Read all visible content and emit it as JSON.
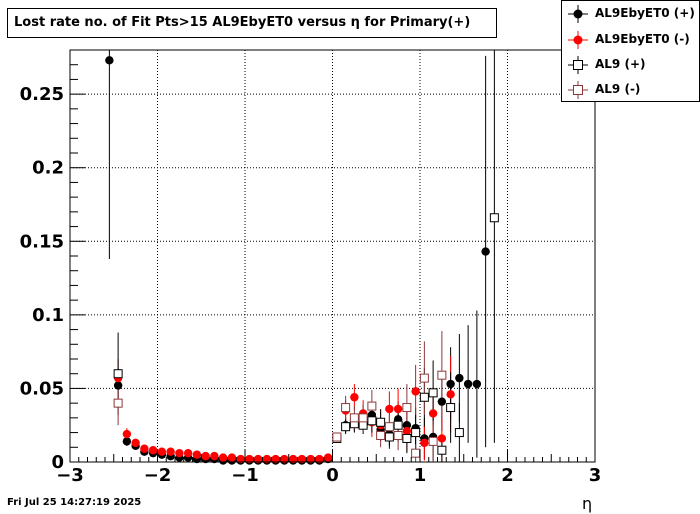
{
  "timestamp": "Fri Jul 25 14:27:19 2025",
  "chart_data": {
    "type": "scatter",
    "title": "Lost rate no. of Fit Pts>15 AL9EbyET0 versus η for Primary(+)",
    "xlabel": "η",
    "ylabel": "",
    "xlim": [
      -3,
      3
    ],
    "ylim": [
      0,
      0.28
    ],
    "x_ticks": [
      -3,
      -2,
      -1,
      0,
      1,
      2,
      3
    ],
    "x_tick_labels": [
      "−3",
      "−2",
      "−1",
      "0",
      "1",
      "2",
      "3"
    ],
    "y_ticks": [
      0,
      0.05,
      0.1,
      0.15,
      0.2,
      0.25
    ],
    "y_tick_labels": [
      "0",
      "0.05",
      "0.1",
      "0.15",
      "0.2",
      "0.25"
    ],
    "grid": true,
    "legend_position": "top-right",
    "series": [
      {
        "name": "AL9EbyET0 (+)",
        "color": "#000000",
        "marker": "filled-circle",
        "points": [
          [
            -2.55,
            0.273,
            0.135
          ],
          [
            -2.45,
            0.052,
            0.012
          ],
          [
            -2.35,
            0.014,
            0.003
          ],
          [
            -2.25,
            0.011,
            0.002
          ],
          [
            -2.15,
            0.007,
            0.001
          ],
          [
            -2.05,
            0.006,
            0.001
          ],
          [
            -1.95,
            0.005,
            0.001
          ],
          [
            -1.85,
            0.004,
            0.001
          ],
          [
            -1.75,
            0.003,
            0.001
          ],
          [
            -1.65,
            0.003,
            0.001
          ],
          [
            -1.55,
            0.002,
            0.0005
          ],
          [
            -1.45,
            0.002,
            0.0005
          ],
          [
            -1.35,
            0.002,
            0.0005
          ],
          [
            -1.25,
            0.001,
            0.0005
          ],
          [
            -1.15,
            0.001,
            0.0005
          ],
          [
            -1.05,
            0.001,
            0.0005
          ],
          [
            -0.95,
            0.001,
            0.0005
          ],
          [
            -0.85,
            0.001,
            0.0005
          ],
          [
            -0.75,
            0.001,
            0.0005
          ],
          [
            -0.65,
            0.001,
            0.0005
          ],
          [
            -0.55,
            0.001,
            0.0005
          ],
          [
            -0.45,
            0.001,
            0.0005
          ],
          [
            -0.35,
            0.001,
            0.0005
          ],
          [
            -0.25,
            0.001,
            0.0005
          ],
          [
            -0.15,
            0.001,
            0.0005
          ],
          [
            -0.05,
            0.002,
            0.0005
          ],
          [
            0.05,
            0.016,
            0.003
          ],
          [
            0.15,
            0.025,
            0.005
          ],
          [
            0.25,
            0.027,
            0.006
          ],
          [
            0.35,
            0.028,
            0.006
          ],
          [
            0.45,
            0.032,
            0.008
          ],
          [
            0.55,
            0.022,
            0.008
          ],
          [
            0.65,
            0.019,
            0.008
          ],
          [
            0.75,
            0.029,
            0.012
          ],
          [
            0.85,
            0.025,
            0.012
          ],
          [
            0.95,
            0.023,
            0.014
          ],
          [
            1.05,
            0.016,
            0.014
          ],
          [
            1.15,
            0.017,
            0.016
          ],
          [
            1.25,
            0.041,
            0.02
          ],
          [
            1.35,
            0.053,
            0.025
          ],
          [
            1.45,
            0.057,
            0.03
          ],
          [
            1.55,
            0.053,
            0.04
          ],
          [
            1.65,
            0.053,
            0.05
          ],
          [
            1.75,
            0.143,
            0.133
          ]
        ]
      },
      {
        "name": "AL9EbyET0 (-)",
        "color": "#ff0000",
        "marker": "filled-circle",
        "points": [
          [
            -2.45,
            0.057,
            0.013
          ],
          [
            -2.35,
            0.019,
            0.004
          ],
          [
            -2.25,
            0.013,
            0.002
          ],
          [
            -2.15,
            0.009,
            0.002
          ],
          [
            -2.05,
            0.008,
            0.001
          ],
          [
            -1.95,
            0.007,
            0.001
          ],
          [
            -1.85,
            0.007,
            0.001
          ],
          [
            -1.75,
            0.006,
            0.001
          ],
          [
            -1.65,
            0.006,
            0.001
          ],
          [
            -1.55,
            0.005,
            0.001
          ],
          [
            -1.45,
            0.004,
            0.001
          ],
          [
            -1.35,
            0.004,
            0.001
          ],
          [
            -1.25,
            0.003,
            0.0005
          ],
          [
            -1.15,
            0.003,
            0.0005
          ],
          [
            -1.05,
            0.002,
            0.0005
          ],
          [
            -0.95,
            0.002,
            0.0005
          ],
          [
            -0.85,
            0.002,
            0.0005
          ],
          [
            -0.75,
            0.002,
            0.0005
          ],
          [
            -0.65,
            0.002,
            0.0005
          ],
          [
            -0.55,
            0.002,
            0.0005
          ],
          [
            -0.45,
            0.002,
            0.0005
          ],
          [
            -0.35,
            0.002,
            0.0005
          ],
          [
            -0.25,
            0.002,
            0.0005
          ],
          [
            -0.15,
            0.002,
            0.0005
          ],
          [
            -0.05,
            0.003,
            0.0005
          ],
          [
            0.05,
            0.017,
            0.003
          ],
          [
            0.15,
            0.035,
            0.007
          ],
          [
            0.25,
            0.044,
            0.009
          ],
          [
            0.35,
            0.033,
            0.009
          ],
          [
            0.45,
            0.027,
            0.01
          ],
          [
            0.55,
            0.025,
            0.01
          ],
          [
            0.65,
            0.036,
            0.012
          ],
          [
            0.75,
            0.036,
            0.014
          ],
          [
            0.85,
            0.021,
            0.014
          ],
          [
            0.95,
            0.048,
            0.018
          ],
          [
            1.05,
            0.013,
            0.012
          ],
          [
            1.15,
            0.033,
            0.018
          ],
          [
            1.25,
            0.016,
            0.016
          ],
          [
            1.35,
            0.046,
            0.026
          ]
        ]
      },
      {
        "name": "AL9 (+)",
        "color": "#000000",
        "marker": "open-square",
        "points": [
          [
            -2.45,
            0.06,
            0.028
          ],
          [
            0.05,
            0.016,
            0.003
          ],
          [
            0.15,
            0.024,
            0.005
          ],
          [
            0.25,
            0.026,
            0.006
          ],
          [
            0.35,
            0.025,
            0.006
          ],
          [
            0.45,
            0.028,
            0.008
          ],
          [
            0.55,
            0.027,
            0.009
          ],
          [
            0.65,
            0.017,
            0.008
          ],
          [
            0.75,
            0.025,
            0.011
          ],
          [
            0.85,
            0.016,
            0.01
          ],
          [
            0.95,
            0.02,
            0.012
          ],
          [
            1.05,
            0.044,
            0.02
          ],
          [
            1.15,
            0.047,
            0.022
          ],
          [
            1.25,
            0.008,
            0.008
          ],
          [
            1.35,
            0.037,
            0.024
          ],
          [
            1.45,
            0.02,
            0.02
          ],
          [
            1.85,
            0.166,
            0.153
          ]
        ]
      },
      {
        "name": "AL9 (-)",
        "color": "#8b3a3a",
        "marker": "open-square",
        "points": [
          [
            -2.45,
            0.04,
            0.015
          ],
          [
            0.05,
            0.017,
            0.003
          ],
          [
            0.15,
            0.037,
            0.008
          ],
          [
            0.25,
            0.03,
            0.008
          ],
          [
            0.35,
            0.03,
            0.009
          ],
          [
            0.45,
            0.038,
            0.011
          ],
          [
            0.55,
            0.018,
            0.008
          ],
          [
            0.65,
            0.024,
            0.01
          ],
          [
            0.75,
            0.018,
            0.01
          ],
          [
            0.85,
            0.037,
            0.016
          ],
          [
            0.95,
            0.006,
            0.006
          ],
          [
            1.05,
            0.057,
            0.025
          ],
          [
            1.15,
            0.014,
            0.014
          ],
          [
            1.25,
            0.059,
            0.03
          ]
        ]
      }
    ]
  }
}
